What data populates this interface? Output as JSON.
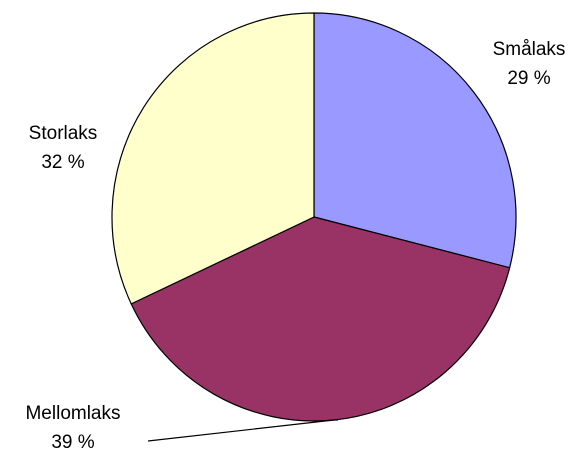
{
  "chart_data": {
    "type": "pie",
    "title": "",
    "start_angle_deg": 0,
    "direction": "clockwise",
    "slices": [
      {
        "label": "Smålaks",
        "value": 29,
        "value_label": "29 %",
        "color": "#9999ff"
      },
      {
        "label": "Mellomlaks",
        "value": 39,
        "value_label": "39 %",
        "color": "#993366"
      },
      {
        "label": "Storlaks",
        "value": 32,
        "value_label": "32 %",
        "color": "#ffffcc"
      }
    ],
    "legend": "none",
    "labels": "outside"
  }
}
